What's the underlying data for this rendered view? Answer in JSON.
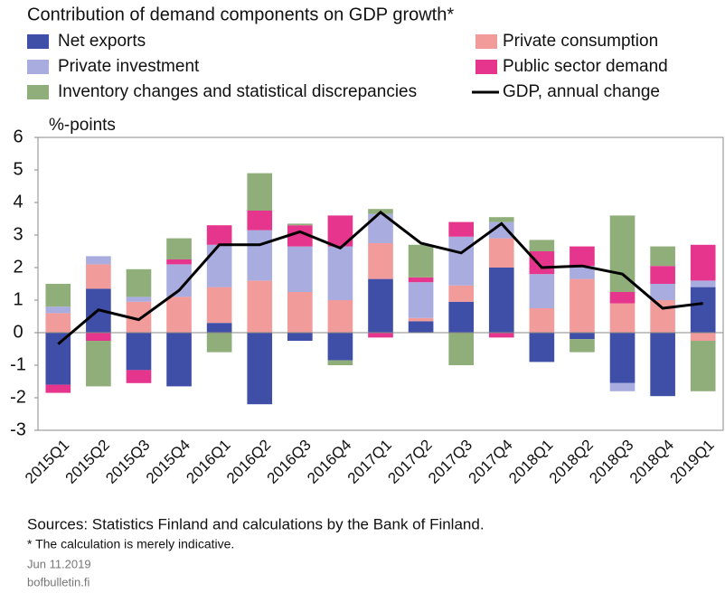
{
  "chart_data": {
    "type": "bar",
    "title": "Contribution of demand components on GDP growth*",
    "y_label": "%-points",
    "categories": [
      "2015Q1",
      "2015Q2",
      "2015Q3",
      "2015Q4",
      "2016Q1",
      "2016Q2",
      "2016Q3",
      "2016Q4",
      "2017Q1",
      "2017Q2",
      "2017Q3",
      "2017Q4",
      "2018Q1",
      "2018Q2",
      "2018Q3",
      "2018Q4",
      "2019Q1"
    ],
    "series": [
      {
        "name": "Net exports",
        "color": "#3f4fa8",
        "values": [
          -1.6,
          1.35,
          -1.15,
          -1.65,
          0.3,
          -2.2,
          -0.25,
          -0.85,
          1.65,
          0.35,
          0.95,
          2.0,
          -0.9,
          -0.2,
          -1.55,
          -1.95,
          1.4
        ]
      },
      {
        "name": "Private consumption",
        "color": "#f19b9b",
        "values": [
          0.6,
          0.75,
          0.95,
          1.1,
          1.1,
          1.6,
          1.25,
          1.0,
          1.1,
          0.1,
          0.5,
          0.9,
          0.75,
          1.65,
          0.9,
          1.0,
          -0.25
        ]
      },
      {
        "name": "Private investment",
        "color": "#a9acdf",
        "values": [
          0.2,
          0.25,
          0.15,
          1.0,
          1.3,
          1.55,
          1.4,
          1.65,
          0.9,
          1.1,
          1.5,
          0.5,
          1.05,
          0.4,
          -0.25,
          0.5,
          0.2
        ]
      },
      {
        "name": "Public sector demand",
        "color": "#e6358c",
        "values": [
          -0.25,
          -0.25,
          -0.4,
          0.15,
          0.6,
          0.6,
          0.65,
          0.95,
          -0.15,
          0.15,
          0.45,
          -0.15,
          0.7,
          0.6,
          0.35,
          0.55,
          1.1
        ]
      },
      {
        "name": "Inventory changes and statistical discrepancies",
        "color": "#8fae7a",
        "values": [
          0.7,
          -1.4,
          0.85,
          0.65,
          -0.6,
          1.15,
          0.05,
          -0.15,
          0.15,
          1.0,
          -1.0,
          0.15,
          0.35,
          -0.4,
          2.35,
          0.6,
          -1.55
        ]
      },
      {
        "name": "GDP, annual change",
        "type": "line",
        "color": "#000000",
        "values": [
          -0.35,
          0.7,
          0.4,
          1.3,
          2.7,
          2.7,
          3.1,
          2.6,
          3.7,
          2.75,
          2.45,
          3.35,
          2.0,
          2.05,
          1.8,
          0.75,
          0.9
        ]
      }
    ],
    "ylim": [
      -3,
      6
    ],
    "yticks": [
      -3,
      -2,
      -1,
      0,
      1,
      2,
      3,
      4,
      5,
      6
    ],
    "sources": "Sources: Statistics Finland and calculations by the Bank of Finland.",
    "note": "* The calculation is merely indicative.",
    "date": "Jun 11.2019",
    "site": "bofbulletin.fi"
  }
}
